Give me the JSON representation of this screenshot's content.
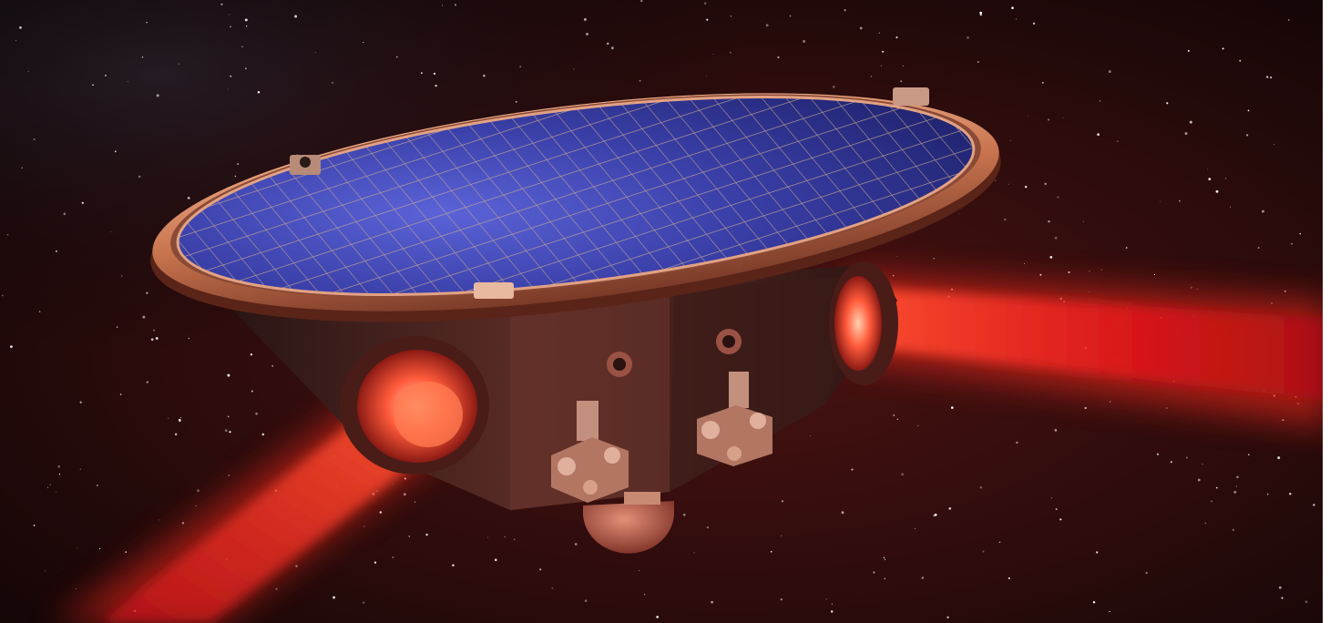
{
  "image": {
    "subject": "spacecraft",
    "colors": {
      "space_dark": "#120607",
      "space_red_haze": "#3a0d0d",
      "laser_core": "#ff3a1e",
      "laser_glow": "#e8141a",
      "solar_cell_blue": "#2a2f8f",
      "solar_cell_highlight": "#5b63d8",
      "copper_rim": "#d98a62",
      "hull": "#3b1e1c",
      "hull_highlight": "#8a4a3e"
    }
  }
}
